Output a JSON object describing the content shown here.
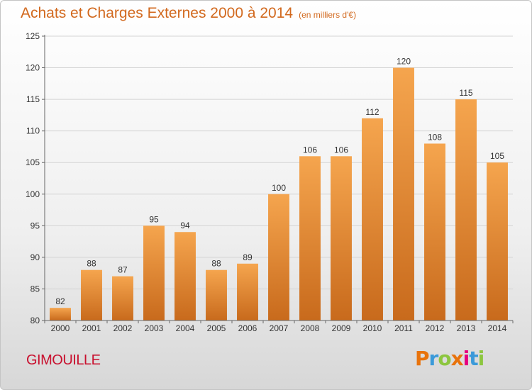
{
  "header": {
    "title": "Achats et Charges Externes 2000 à 2014",
    "unit": "(en milliers d'€)"
  },
  "footer": {
    "location": "GIMOUILLE",
    "logo_text": "Proxiti",
    "logo_colors": [
      "#e8730c",
      "#3b9ad9",
      "#8cc63f",
      "#e8730c",
      "#e6007e",
      "#3b9ad9",
      "#8cc63f"
    ]
  },
  "colors": {
    "bar_top": "#f5a54e",
    "bar_bottom": "#c86a1c",
    "title": "#d2691e",
    "location": "#c8102e"
  },
  "chart_data": {
    "type": "bar",
    "title": "Achats et Charges Externes 2000 à 2014",
    "subtitle": "(en milliers d'€)",
    "categories": [
      "2000",
      "2001",
      "2002",
      "2003",
      "2004",
      "2005",
      "2006",
      "2007",
      "2008",
      "2009",
      "2010",
      "2011",
      "2012",
      "2013",
      "2014"
    ],
    "values": [
      82,
      88,
      87,
      95,
      94,
      88,
      89,
      100,
      106,
      106,
      112,
      120,
      108,
      115,
      105
    ],
    "ylim": [
      80,
      125
    ],
    "yticks": [
      80,
      85,
      90,
      95,
      100,
      105,
      110,
      115,
      120,
      125
    ],
    "grid": true,
    "xlabel": "",
    "ylabel": ""
  }
}
